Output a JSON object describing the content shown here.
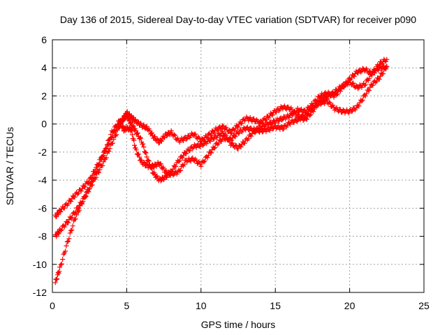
{
  "chart_data": {
    "type": "scatter",
    "title": "Day 136 of 2015, Sidereal Day-to-day VTEC variation (SDTVAR) for receiver p090",
    "xlabel": "GPS time / hours",
    "ylabel": "SDTVAR / TECUs",
    "xlim": [
      0,
      25
    ],
    "ylim": [
      -12,
      6
    ],
    "xticks": [
      0,
      5,
      10,
      15,
      20,
      25
    ],
    "yticks": [
      -12,
      -10,
      -8,
      -6,
      -4,
      -2,
      0,
      2,
      4,
      6
    ],
    "xtick_labels": [
      "0",
      "5",
      "10",
      "15",
      "20",
      "25"
    ],
    "ytick_labels": [
      "-12",
      "-10",
      "-8",
      "-6",
      "-4",
      "-2",
      "0",
      "2",
      "4",
      "6"
    ],
    "grid": true,
    "marker": "plus",
    "color": "#ff0000",
    "series": [
      {
        "x": [
          0.2,
          0.5,
          1.0,
          1.5,
          2.0,
          2.5,
          3.0,
          3.5,
          4.0,
          4.5,
          4.8,
          5.0,
          5.3,
          5.6,
          6.0,
          6.4,
          6.8,
          7.2,
          7.6,
          8.0,
          8.5,
          9.0,
          9.5,
          10.0,
          10.5,
          11.0,
          11.5,
          12.0,
          12.5,
          13.0,
          13.5,
          14.0,
          14.5,
          15.0,
          15.5,
          16.0,
          16.5,
          17.0,
          17.5,
          18.0,
          18.5,
          19.0,
          19.5,
          20.0,
          20.5,
          21.0,
          21.5,
          22.0,
          22.5
        ],
        "y": [
          -11.3,
          -10.3,
          -8.5,
          -6.8,
          -5.6,
          -4.5,
          -3.2,
          -2.0,
          -0.6,
          0.2,
          -0.4,
          -0.3,
          -0.4,
          -1.8,
          -2.7,
          -3.0,
          -3.0,
          -2.8,
          -3.4,
          -3.6,
          -3.4,
          -2.6,
          -2.5,
          -2.9,
          -2.2,
          -1.5,
          -1.0,
          -1.1,
          -0.6,
          -0.3,
          -0.4,
          -0.5,
          -0.4,
          -0.2,
          -0.3,
          0.1,
          0.3,
          0.6,
          1.2,
          1.5,
          1.6,
          1.1,
          0.9,
          0.9,
          1.2,
          2.0,
          2.8,
          3.3,
          4.1
        ]
      },
      {
        "x": [
          0.2,
          0.5,
          1.0,
          1.5,
          2.0,
          2.5,
          3.0,
          3.5,
          4.0,
          4.5,
          4.8,
          5.0,
          5.3,
          5.6,
          6.0,
          6.4,
          6.8,
          7.2,
          7.6,
          8.0,
          8.5,
          9.0,
          9.5,
          10.0,
          10.5,
          11.0,
          11.5,
          12.0,
          12.5,
          13.0,
          13.5,
          14.0,
          14.5,
          15.0,
          15.5,
          16.0,
          16.5,
          17.0,
          17.5,
          18.0,
          18.5,
          19.0,
          19.5,
          20.0,
          20.5,
          21.0,
          21.5,
          22.0,
          22.5
        ],
        "y": [
          -8.0,
          -7.6,
          -7.0,
          -6.3,
          -5.5,
          -4.6,
          -3.6,
          -2.6,
          -1.4,
          -0.2,
          0.4,
          0.8,
          0.5,
          0.2,
          -0.1,
          -0.3,
          -0.9,
          -1.3,
          -0.8,
          -0.6,
          -1.2,
          -1.0,
          -0.7,
          -1.2,
          -0.8,
          -0.4,
          -0.2,
          -0.6,
          -0.1,
          0.4,
          0.3,
          0.1,
          0.5,
          0.9,
          1.2,
          1.1,
          0.6,
          0.3,
          0.9,
          1.7,
          1.9,
          2.3,
          2.7,
          3.0,
          2.6,
          2.8,
          3.6,
          4.3,
          4.6
        ]
      },
      {
        "x": [
          0.2,
          0.5,
          1.0,
          1.5,
          2.0,
          2.5,
          3.0,
          3.5,
          4.0,
          4.5,
          4.8,
          5.0,
          5.3,
          5.6,
          6.0,
          6.4,
          6.8,
          7.2,
          7.6,
          8.0,
          8.5,
          9.0,
          9.5,
          10.0,
          10.5,
          11.0,
          11.5,
          12.0,
          12.5,
          13.0,
          13.5,
          14.0,
          14.5,
          15.0,
          15.5,
          16.0,
          16.5,
          17.0,
          17.5,
          18.0,
          18.5,
          19.0,
          19.5,
          20.0,
          20.5,
          21.0,
          21.5,
          22.0,
          22.5
        ],
        "y": [
          -6.6,
          -6.2,
          -5.7,
          -5.1,
          -4.6,
          -4.0,
          -3.0,
          -2.0,
          -0.9,
          0.1,
          0.4,
          0.6,
          0.0,
          -0.5,
          -1.2,
          -2.5,
          -3.5,
          -4.0,
          -3.8,
          -3.4,
          -2.6,
          -2.0,
          -1.6,
          -1.5,
          -1.2,
          -0.9,
          -0.6,
          -1.4,
          -1.7,
          -1.2,
          -0.6,
          -0.2,
          0.0,
          0.2,
          0.4,
          0.6,
          1.0,
          0.9,
          1.4,
          2.0,
          2.2,
          2.0,
          2.6,
          3.2,
          3.7,
          3.9,
          3.6,
          4.0,
          4.1
        ]
      }
    ]
  }
}
